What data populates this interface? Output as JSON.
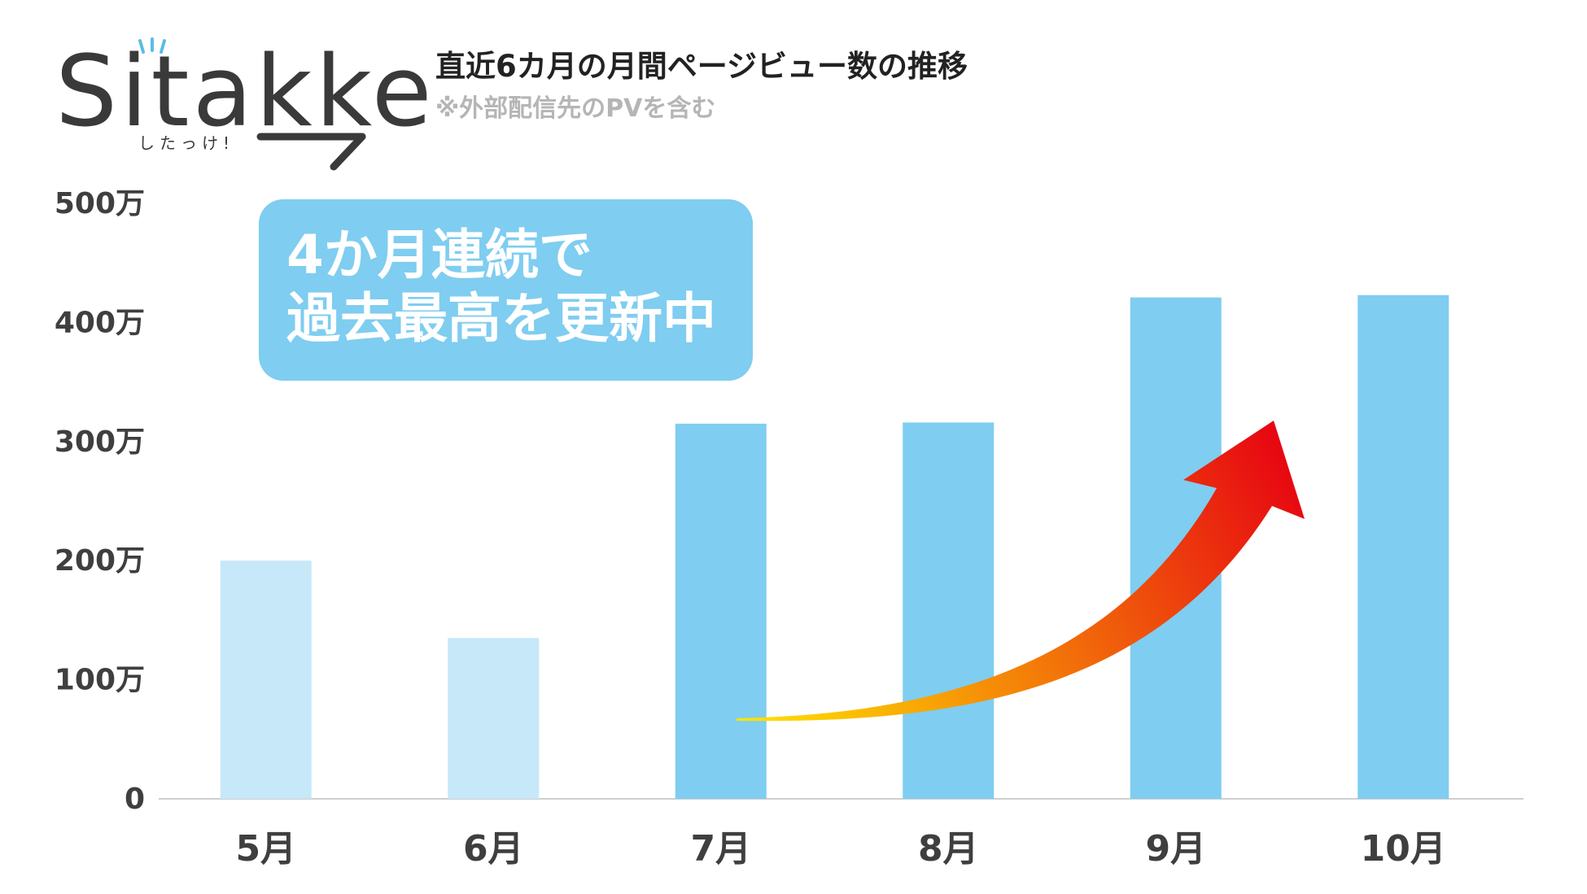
{
  "logo": {
    "wordmark": "Sitakke",
    "tagline": "したっけ!"
  },
  "header": {
    "title": "直近6カ月の月間ページビュー数の推移",
    "note": "※外部配信先のPVを含む"
  },
  "callout": {
    "line1": "4か月連続で",
    "line2": "過去最高を更新中"
  },
  "colors": {
    "bar_past": "#c6e8f9",
    "bar_recent": "#7fcdf0",
    "arrow_start": "#ffe600",
    "arrow_end": "#e60012"
  },
  "chart_data": {
    "type": "bar",
    "categories": [
      "5月",
      "6月",
      "7月",
      "8月",
      "9月",
      "10月"
    ],
    "values": [
      2000000,
      1350000,
      3150000,
      3160000,
      4210000,
      4230000
    ],
    "bar_color_keys": [
      "bar_past",
      "bar_past",
      "bar_recent",
      "bar_recent",
      "bar_recent",
      "bar_recent"
    ],
    "ylim": [
      0,
      5000000
    ],
    "yticks": [
      0,
      1000000,
      2000000,
      3000000,
      4000000,
      5000000
    ],
    "ytick_labels": [
      "0",
      "100万",
      "200万",
      "300万",
      "400万",
      "500万"
    ],
    "grid": false,
    "annotation": "upward-arrow"
  }
}
